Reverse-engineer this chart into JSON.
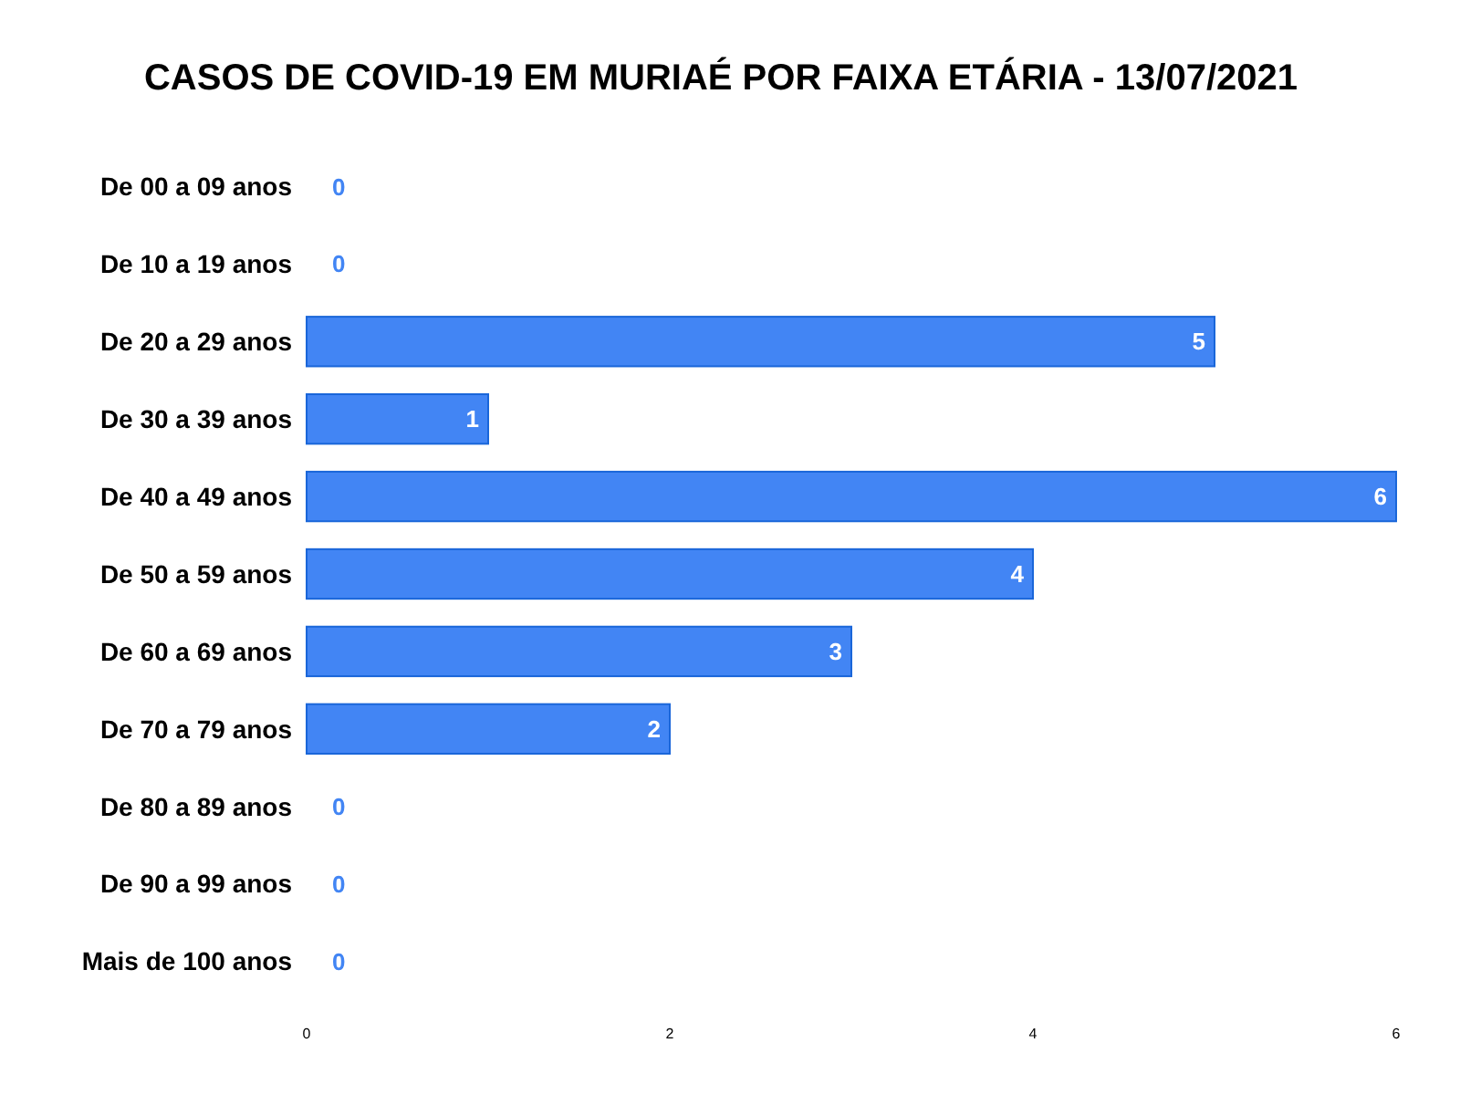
{
  "chart_data": {
    "type": "bar",
    "orientation": "horizontal",
    "title": "CASOS DE COVID-19 EM MURIAÉ POR FAIXA ETÁRIA - 13/07/2021",
    "categories": [
      "De 00 a 09 anos",
      "De 10 a 19 anos",
      "De 20 a 29 anos",
      "De 30 a 39 anos",
      "De 40 a 49 anos",
      "De 50 a 59 anos",
      "De 60 a 69 anos",
      "De 70 a 79 anos",
      "De 80 a 89 anos",
      "De 90 a 99 anos",
      "Mais de 100 anos"
    ],
    "values": [
      0,
      0,
      5,
      1,
      6,
      4,
      3,
      2,
      0,
      0,
      0
    ],
    "color": "#4285f4",
    "xlim": [
      0,
      6
    ],
    "xticks": [
      0,
      2,
      4,
      6
    ],
    "data_labels": true,
    "grid": false
  }
}
